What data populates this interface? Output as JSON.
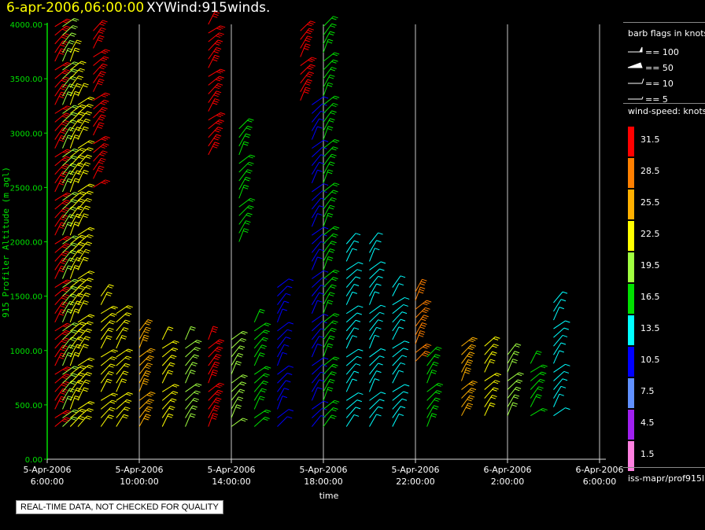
{
  "header": {
    "date_label": "6-apr-2006,06:00:00",
    "plot_name": "XYWind:915winds."
  },
  "qc_note": "REAL-TIME DATA, NOT CHECKED FOR QUALITY",
  "legend": {
    "barb_title": "barb flags in knots",
    "barb_entries": [
      "== 100",
      "== 50",
      "== 10",
      "== 5"
    ],
    "speed_title": "wind-speed: knots",
    "source_label": "iss-mapr/prof915l",
    "color_bins": [
      {
        "label": "31.5",
        "color": "#ff0000"
      },
      {
        "label": "28.5",
        "color": "#ff8000"
      },
      {
        "label": "25.5",
        "color": "#ffb000"
      },
      {
        "label": "22.5",
        "color": "#ffff00"
      },
      {
        "label": "19.5",
        "color": "#a0ff40"
      },
      {
        "label": "16.5",
        "color": "#00e000"
      },
      {
        "label": "13.5",
        "color": "#00ffff"
      },
      {
        "label": "10.5",
        "color": "#0000ff"
      },
      {
        "label": "7.5",
        "color": "#6090ff"
      },
      {
        "label": "4.5",
        "color": "#a020f0"
      },
      {
        "label": "1.5",
        "color": "#ff80e0"
      }
    ]
  },
  "chart_data": {
    "type": "scatter",
    "ylabel": "915 Profiler Altitude (m agl)",
    "xlabel": "time",
    "ylim": [
      0,
      4000
    ],
    "y_ticks": [
      "0.00",
      "500.00",
      "1000.00",
      "1500.00",
      "2000.00",
      "2500.00",
      "3000.00",
      "3500.00",
      "4000.00"
    ],
    "x_ticks": [
      {
        "date": "5-Apr-2006",
        "time": "6:00:00"
      },
      {
        "date": "5-Apr-2006",
        "time": "10:00:00"
      },
      {
        "date": "5-Apr-2006",
        "time": "14:00:00"
      },
      {
        "date": "5-Apr-2006",
        "time": "18:00:00"
      },
      {
        "date": "5-Apr-2006",
        "time": "22:00:00"
      },
      {
        "date": "6-Apr-2006",
        "time": "2:00:00"
      },
      {
        "date": "6-Apr-2006",
        "time": "6:00:00"
      }
    ],
    "xlim": [
      "2006-04-05 06:00",
      "2006-04-06 06:00"
    ],
    "grid": true,
    "series": [
      {
        "time": "2006-04-05 06:20",
        "speed_kts": 31.5,
        "alt_range": [
          300,
          4000
        ]
      },
      {
        "time": "2006-04-05 06:40",
        "speed_kts": 19.5,
        "alt_range": [
          300,
          4000
        ]
      },
      {
        "time": "2006-04-05 07:00",
        "speed_kts": 22.5,
        "alt_range": [
          300,
          3800
        ]
      },
      {
        "time": "2006-04-05 07:20",
        "speed_kts": 22.5,
        "alt_range": [
          300,
          3400
        ]
      },
      {
        "time": "2006-04-05 08:00",
        "speed_kts": 31.5,
        "alt_range": [
          2500,
          4000
        ]
      },
      {
        "time": "2006-04-05 08:20",
        "speed_kts": 22.5,
        "alt_range": [
          300,
          1500
        ]
      },
      {
        "time": "2006-04-05 09:00",
        "speed_kts": 22.5,
        "alt_range": [
          300,
          1400
        ]
      },
      {
        "time": "2006-04-05 10:00",
        "speed_kts": 25.5,
        "alt_range": [
          300,
          1200
        ]
      },
      {
        "time": "2006-04-05 11:00",
        "speed_kts": 22.5,
        "alt_range": [
          300,
          1100
        ]
      },
      {
        "time": "2006-04-05 12:00",
        "speed_kts": 19.5,
        "alt_range": [
          300,
          1100
        ]
      },
      {
        "time": "2006-04-05 13:00",
        "speed_kts": 31.5,
        "alt_range": [
          300,
          1100
        ]
      },
      {
        "time": "2006-04-05 13:00",
        "speed_kts": 31.5,
        "alt_range": [
          2800,
          4000
        ]
      },
      {
        "time": "2006-04-05 14:00",
        "speed_kts": 19.5,
        "alt_range": [
          300,
          1100
        ]
      },
      {
        "time": "2006-04-05 14:20",
        "speed_kts": 16.5,
        "alt_range": [
          2000,
          3100
        ]
      },
      {
        "time": "2006-04-05 15:00",
        "speed_kts": 16.5,
        "alt_range": [
          300,
          1300
        ]
      },
      {
        "time": "2006-04-05 16:00",
        "speed_kts": 10.5,
        "alt_range": [
          300,
          1600
        ]
      },
      {
        "time": "2006-04-05 17:00",
        "speed_kts": 31.5,
        "alt_range": [
          3300,
          4000
        ]
      },
      {
        "time": "2006-04-05 17:30",
        "speed_kts": 10.5,
        "alt_range": [
          300,
          3300
        ]
      },
      {
        "time": "2006-04-05 18:00",
        "speed_kts": 16.5,
        "alt_range": [
          300,
          4000
        ]
      },
      {
        "time": "2006-04-05 19:00",
        "speed_kts": 13.5,
        "alt_range": [
          300,
          2000
        ]
      },
      {
        "time": "2006-04-05 20:00",
        "speed_kts": 13.5,
        "alt_range": [
          300,
          2000
        ]
      },
      {
        "time": "2006-04-05 21:00",
        "speed_kts": 13.5,
        "alt_range": [
          300,
          1600
        ]
      },
      {
        "time": "2006-04-05 22:00",
        "speed_kts": 28.5,
        "alt_range": [
          900,
          1600
        ]
      },
      {
        "time": "2006-04-05 22:30",
        "speed_kts": 16.5,
        "alt_range": [
          300,
          1000
        ]
      },
      {
        "time": "2006-04-06 00:00",
        "speed_kts": 25.5,
        "alt_range": [
          400,
          1100
        ]
      },
      {
        "time": "2006-04-06 01:00",
        "speed_kts": 22.5,
        "alt_range": [
          400,
          1100
        ]
      },
      {
        "time": "2006-04-06 02:00",
        "speed_kts": 19.5,
        "alt_range": [
          400,
          1000
        ]
      },
      {
        "time": "2006-04-06 03:00",
        "speed_kts": 16.5,
        "alt_range": [
          400,
          900
        ]
      },
      {
        "time": "2006-04-06 04:00",
        "speed_kts": 13.5,
        "alt_range": [
          400,
          1500
        ]
      }
    ]
  }
}
